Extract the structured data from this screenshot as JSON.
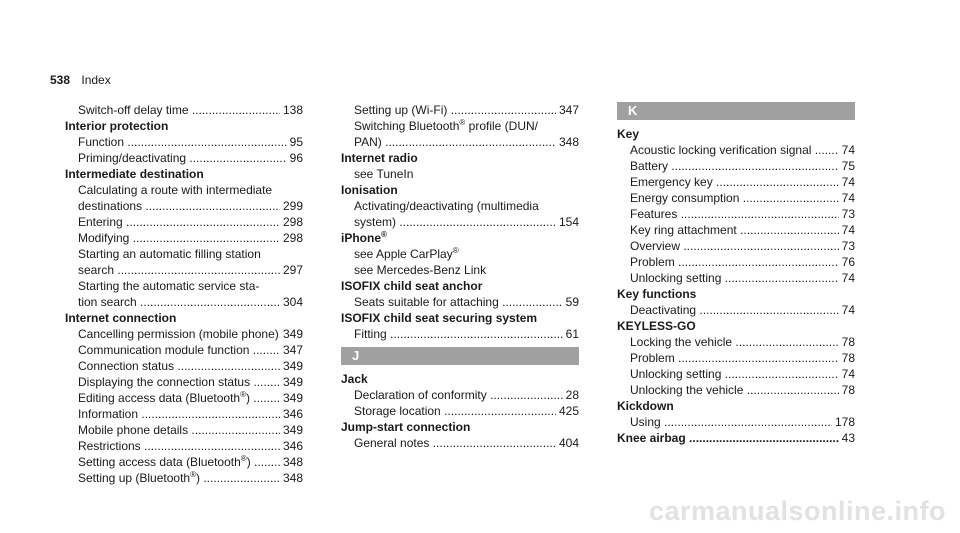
{
  "header": {
    "page_number": "538",
    "section": "Index"
  },
  "col1": [
    {
      "t": "entry",
      "sub": true,
      "label": "Switch-off delay time",
      "page": "138"
    },
    {
      "t": "heading",
      "text": "Interior protection"
    },
    {
      "t": "entry",
      "sub": true,
      "label": "Function",
      "page": "95"
    },
    {
      "t": "entry",
      "sub": true,
      "label": "Priming/deactivating",
      "page": "96"
    },
    {
      "t": "heading",
      "text": "Intermediate destination"
    },
    {
      "t": "line",
      "sub": true,
      "text": "Calculating a route with intermediate"
    },
    {
      "t": "entry",
      "sub": true,
      "label": "destinations",
      "page": "299"
    },
    {
      "t": "entry",
      "sub": true,
      "label": "Entering",
      "page": "298"
    },
    {
      "t": "entry",
      "sub": true,
      "label": "Modifying",
      "page": "298"
    },
    {
      "t": "line",
      "sub": true,
      "text": "Starting an automatic filling station"
    },
    {
      "t": "entry",
      "sub": true,
      "label": "search",
      "page": "297"
    },
    {
      "t": "line",
      "sub": true,
      "text": "Starting the automatic service sta-"
    },
    {
      "t": "entry",
      "sub": true,
      "label": "tion search",
      "page": "304"
    },
    {
      "t": "heading",
      "text": "Internet connection"
    },
    {
      "t": "entry",
      "sub": true,
      "label": "Cancelling permission (mobile phone)..",
      "page": "349",
      "nodots": true
    },
    {
      "t": "entry",
      "sub": true,
      "label": "Communication module function",
      "page": "347"
    },
    {
      "t": "entry",
      "sub": true,
      "label": "Connection status",
      "page": "349"
    },
    {
      "t": "entry",
      "sub": true,
      "label": "Displaying the connection status",
      "page": "349"
    },
    {
      "t": "entry",
      "sub": true,
      "label": "Editing access data (Bluetooth",
      "sup": "®",
      "after": ")",
      "page": "349"
    },
    {
      "t": "entry",
      "sub": true,
      "label": "Information",
      "page": "346"
    },
    {
      "t": "entry",
      "sub": true,
      "label": "Mobile phone details",
      "page": "349"
    },
    {
      "t": "entry",
      "sub": true,
      "label": "Restrictions",
      "page": "346"
    },
    {
      "t": "entry",
      "sub": true,
      "label": "Setting access data (Bluetooth",
      "sup": "®",
      "after": ")",
      "page": "348"
    },
    {
      "t": "entry",
      "sub": true,
      "label": "Setting up (Bluetooth",
      "sup": "®",
      "after": ")",
      "page": "348"
    }
  ],
  "col2": [
    {
      "t": "entry",
      "sub": true,
      "label": "Setting up (Wi-Fi)",
      "page": "347"
    },
    {
      "t": "line",
      "sub": true,
      "text": "Switching Bluetooth",
      "sup": "®",
      "after": " profile (DUN/"
    },
    {
      "t": "entry",
      "sub": true,
      "label": "PAN)",
      "page": "348"
    },
    {
      "t": "heading",
      "text": "Internet radio"
    },
    {
      "t": "line",
      "sub": true,
      "text": "see TuneIn"
    },
    {
      "t": "heading",
      "text": "Ionisation"
    },
    {
      "t": "line",
      "sub": true,
      "text": "Activating/deactivating (multimedia"
    },
    {
      "t": "entry",
      "sub": true,
      "label": "system)",
      "page": "154"
    },
    {
      "t": "heading",
      "text": "iPhone",
      "sup": "®"
    },
    {
      "t": "line",
      "sub": true,
      "text": "see Apple CarPlay",
      "sup": "®"
    },
    {
      "t": "line",
      "sub": true,
      "text": "see Mercedes-Benz Link"
    },
    {
      "t": "heading",
      "text": "ISOFIX child seat anchor"
    },
    {
      "t": "entry",
      "sub": true,
      "label": "Seats suitable for attaching",
      "page": "59"
    },
    {
      "t": "heading",
      "text": "ISOFIX child seat securing system"
    },
    {
      "t": "entry",
      "sub": true,
      "label": "Fitting",
      "page": "61"
    },
    {
      "t": "spacer"
    },
    {
      "t": "letter",
      "text": "J"
    },
    {
      "t": "heading",
      "text": "Jack"
    },
    {
      "t": "entry",
      "sub": true,
      "label": "Declaration of conformity",
      "page": "28"
    },
    {
      "t": "entry",
      "sub": true,
      "label": "Storage location",
      "page": "425"
    },
    {
      "t": "heading",
      "text": "Jump-start connection"
    },
    {
      "t": "entry",
      "sub": true,
      "label": "General notes",
      "page": "404"
    }
  ],
  "col3": [
    {
      "t": "letter",
      "text": "K"
    },
    {
      "t": "heading",
      "text": "Key"
    },
    {
      "t": "entry",
      "sub": true,
      "label": "Acoustic locking verification signal",
      "page": "74"
    },
    {
      "t": "entry",
      "sub": true,
      "label": "Battery",
      "page": "75"
    },
    {
      "t": "entry",
      "sub": true,
      "label": "Emergency key",
      "page": "74"
    },
    {
      "t": "entry",
      "sub": true,
      "label": "Energy consumption",
      "page": "74"
    },
    {
      "t": "entry",
      "sub": true,
      "label": "Features",
      "page": "73"
    },
    {
      "t": "entry",
      "sub": true,
      "label": "Key ring attachment",
      "page": "74"
    },
    {
      "t": "entry",
      "sub": true,
      "label": "Overview",
      "page": "73"
    },
    {
      "t": "entry",
      "sub": true,
      "label": "Problem",
      "page": "76"
    },
    {
      "t": "entry",
      "sub": true,
      "label": "Unlocking setting",
      "page": "74"
    },
    {
      "t": "heading",
      "text": "Key functions"
    },
    {
      "t": "entry",
      "sub": true,
      "label": "Deactivating",
      "page": "74"
    },
    {
      "t": "heading",
      "text": "KEYLESS-GO"
    },
    {
      "t": "entry",
      "sub": true,
      "label": "Locking the vehicle",
      "page": "78"
    },
    {
      "t": "entry",
      "sub": true,
      "label": "Problem",
      "page": "78"
    },
    {
      "t": "entry",
      "sub": true,
      "label": "Unlocking setting",
      "page": "74"
    },
    {
      "t": "entry",
      "sub": true,
      "label": "Unlocking the vehicle",
      "page": "78"
    },
    {
      "t": "heading",
      "text": "Kickdown"
    },
    {
      "t": "entry",
      "sub": true,
      "label": "Using",
      "page": "178"
    },
    {
      "t": "entry",
      "sub": false,
      "bold": true,
      "label": "Knee airbag",
      "page": "43"
    }
  ],
  "watermark": "carmanualsonline.info"
}
